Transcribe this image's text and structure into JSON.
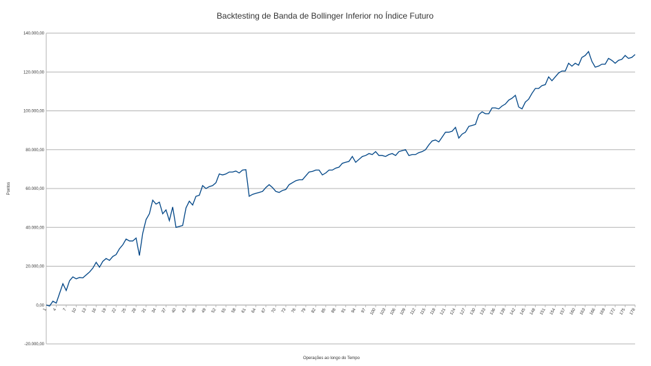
{
  "chart_data": {
    "type": "line",
    "title": "Backtesting de Banda de Bollinger Inferior no Índice Futuro",
    "x_label": "Operações ao longo do Tempo",
    "y_label": "Pontos",
    "grid": true,
    "x": [
      1,
      2,
      3,
      4,
      5,
      6,
      7,
      8,
      9,
      10,
      11,
      12,
      13,
      14,
      15,
      16,
      17,
      18,
      19,
      20,
      21,
      22,
      23,
      24,
      25,
      26,
      27,
      28,
      29,
      30,
      31,
      32,
      33,
      34,
      35,
      36,
      37,
      38,
      39,
      40,
      41,
      42,
      43,
      44,
      45,
      46,
      47,
      48,
      49,
      50,
      51,
      52,
      53,
      54,
      55,
      56,
      57,
      58,
      59,
      60,
      61,
      62,
      63,
      64,
      65,
      66,
      67,
      68,
      69,
      70,
      71,
      72,
      73,
      74,
      75,
      76,
      77,
      78,
      79,
      80,
      81,
      82,
      83,
      84,
      85,
      86,
      87,
      88,
      89,
      90,
      91,
      92,
      93,
      94,
      95,
      96,
      97,
      98,
      99,
      100,
      101,
      102,
      103,
      104,
      105,
      106,
      107,
      108,
      109,
      110,
      111,
      112,
      113,
      114,
      115,
      116,
      117,
      118,
      119,
      120,
      121,
      122,
      123,
      124,
      125,
      126,
      127,
      128,
      129,
      130,
      131,
      132,
      133,
      134,
      135,
      136,
      137,
      138,
      139,
      140,
      141,
      142,
      143,
      144,
      145,
      146,
      147,
      148,
      149,
      150,
      151,
      152,
      153,
      154,
      155,
      156,
      157,
      158,
      159,
      160,
      161,
      162,
      163,
      164,
      165,
      166,
      167,
      168,
      169,
      170,
      171,
      172,
      173,
      174,
      175,
      176,
      177,
      178
    ],
    "series": [
      {
        "name": "Pontos",
        "color": "#004586",
        "values": [
          0,
          -500,
          2000,
          1000,
          6000,
          11000,
          7500,
          12500,
          14500,
          13500,
          14200,
          14000,
          15500,
          17000,
          19000,
          22000,
          19500,
          22500,
          24000,
          23000,
          25000,
          26000,
          29000,
          31000,
          34000,
          33000,
          33000,
          34500,
          25500,
          37000,
          44000,
          47000,
          54000,
          52000,
          53000,
          47000,
          49000,
          43500,
          50500,
          40000,
          40500,
          41000,
          50000,
          53500,
          51500,
          56000,
          56500,
          61500,
          60000,
          61000,
          61500,
          63000,
          67500,
          67000,
          67500,
          68500,
          68500,
          69000,
          68000,
          69500,
          69700,
          56000,
          57000,
          57500,
          58000,
          58500,
          60500,
          62000,
          60500,
          58500,
          58000,
          59000,
          59500,
          62000,
          63000,
          64000,
          64500,
          64500,
          66500,
          68500,
          68800,
          69500,
          69500,
          67000,
          68000,
          69500,
          69500,
          70500,
          71000,
          73000,
          73500,
          74000,
          76500,
          73500,
          75000,
          76500,
          77000,
          78000,
          77500,
          79000,
          77000,
          77000,
          76500,
          77500,
          78000,
          77000,
          79000,
          79500,
          80000,
          77000,
          77500,
          77500,
          78500,
          79000,
          80000,
          82500,
          84500,
          85000,
          84000,
          86500,
          89000,
          89000,
          89500,
          91500,
          86000,
          88000,
          89000,
          92000,
          92500,
          93000,
          98000,
          99500,
          98500,
          98500,
          101500,
          101500,
          101000,
          102500,
          103500,
          105500,
          106500,
          108000,
          102000,
          101000,
          104500,
          106000,
          109000,
          111500,
          111500,
          113000,
          113500,
          117500,
          115500,
          117500,
          119500,
          120500,
          120500,
          124500,
          123000,
          124500,
          123500,
          127500,
          128500,
          130500,
          125500,
          122500,
          123000,
          124000,
          124000,
          127000,
          126000,
          124500,
          126000,
          126500,
          128500,
          127000,
          127500,
          129000
        ]
      }
    ],
    "xlim": [
      1,
      178
    ],
    "xticks": [
      1,
      4,
      7,
      10,
      13,
      16,
      19,
      22,
      25,
      28,
      31,
      34,
      37,
      40,
      43,
      46,
      49,
      52,
      55,
      58,
      61,
      64,
      67,
      70,
      73,
      76,
      79,
      82,
      85,
      88,
      91,
      94,
      97,
      100,
      103,
      106,
      109,
      112,
      115,
      118,
      121,
      124,
      127,
      130,
      133,
      136,
      139,
      142,
      145,
      148,
      151,
      154,
      157,
      160,
      163,
      166,
      169,
      172,
      175,
      178
    ],
    "ylim": [
      -20000,
      140000
    ],
    "yticks": [
      {
        "value": -20000,
        "label": "-20.000,00"
      },
      {
        "value": 0,
        "label": "0,00"
      },
      {
        "value": 20000,
        "label": "20.000,00"
      },
      {
        "value": 40000,
        "label": "40.000,00"
      },
      {
        "value": 60000,
        "label": "60.000,00"
      },
      {
        "value": 80000,
        "label": "80.000,00"
      },
      {
        "value": 100000,
        "label": "100.000,00"
      },
      {
        "value": 120000,
        "label": "120.000,00"
      },
      {
        "value": 140000,
        "label": "140.000,00"
      }
    ]
  }
}
